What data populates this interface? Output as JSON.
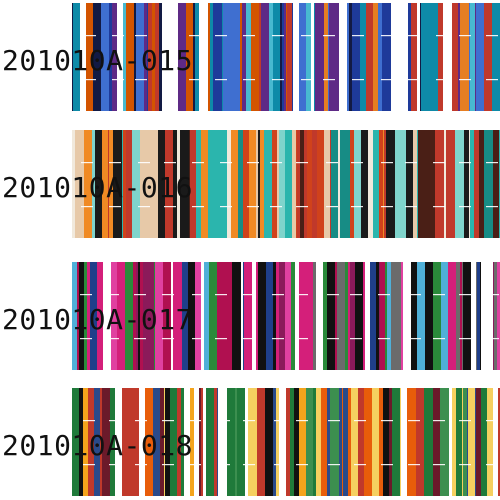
{
  "products": [
    {
      "code": "201010A-015",
      "palette": [
        "#1e3a9a",
        "#3f6fd0",
        "#ffffff",
        "#c0392b",
        "#d35400",
        "#0e8aa8",
        "#5e2a86",
        "#121a44",
        "#48b9d0",
        "#e67e22"
      ]
    },
    {
      "code": "201010A-016",
      "palette": [
        "#2bb5ad",
        "#7fd4cc",
        "#f1e9dc",
        "#d0421b",
        "#f08a24",
        "#1a1a1a",
        "#4a1f16",
        "#e7c9a8",
        "#178c85",
        "#c0392b"
      ]
    },
    {
      "code": "201010A-017",
      "palette": [
        "#d41f7a",
        "#8b1a5a",
        "#1f3f8a",
        "#2a8a3a",
        "#ffffff",
        "#6b6b6b",
        "#e040a0",
        "#111111",
        "#4fb0d8",
        "#b01050"
      ]
    },
    {
      "code": "201010A-018",
      "palette": [
        "#f4a41c",
        "#111111",
        "#c0392b",
        "#1f7a3a",
        "#6b1a2a",
        "#f5d060",
        "#e85d0a",
        "#2a4a8a",
        "#ffffff",
        "#3c8f4f"
      ]
    }
  ]
}
